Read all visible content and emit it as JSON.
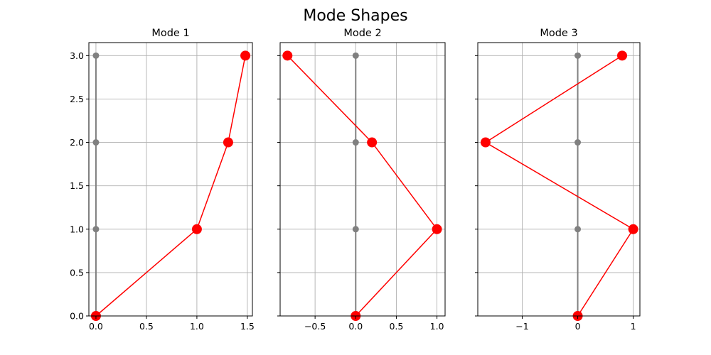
{
  "figure": {
    "title": "Mode Shapes",
    "colors": {
      "mode": "#ff0000",
      "undeformed": "#808080",
      "grid": "#b0b0b0"
    }
  },
  "chart_data": [
    {
      "type": "line",
      "title": "Mode 1",
      "xlim": [
        -0.07,
        1.55
      ],
      "ylim": [
        0,
        3.15
      ],
      "xticks": [
        0.0,
        0.5,
        1.0,
        1.5
      ],
      "xtick_labels": [
        "0.0",
        "0.5",
        "1.0",
        "1.5"
      ],
      "yticks": [
        0.0,
        0.5,
        1.0,
        1.5,
        2.0,
        2.5,
        3.0
      ],
      "ytick_labels": [
        "0.0",
        "0.5",
        "1.0",
        "1.5",
        "2.0",
        "2.5",
        "3.0"
      ],
      "grid": true,
      "series": [
        {
          "x": [
            0,
            0,
            0,
            0
          ],
          "y": [
            0,
            1,
            2,
            3
          ]
        },
        {
          "x": [
            0,
            1.0,
            1.31,
            1.48
          ],
          "y": [
            0,
            1,
            2,
            3
          ]
        }
      ]
    },
    {
      "type": "line",
      "title": "Mode 2",
      "xlim": [
        -0.93,
        1.1
      ],
      "ylim": [
        0,
        3.15
      ],
      "xticks": [
        -0.5,
        0.0,
        0.5,
        1.0
      ],
      "xtick_labels": [
        "−0.5",
        "0.0",
        "0.5",
        "1.0"
      ],
      "yticks": [
        0.0,
        0.5,
        1.0,
        1.5,
        2.0,
        2.5,
        3.0
      ],
      "ytick_labels": [],
      "grid": true,
      "series": [
        {
          "x": [
            0,
            0,
            0,
            0
          ],
          "y": [
            0,
            1,
            2,
            3
          ]
        },
        {
          "x": [
            0,
            1.0,
            0.2,
            -0.84
          ],
          "y": [
            0,
            1,
            2,
            3
          ]
        }
      ]
    },
    {
      "type": "line",
      "title": "Mode 3",
      "xlim": [
        -1.8,
        1.12
      ],
      "ylim": [
        0,
        3.15
      ],
      "xticks": [
        -1,
        0,
        1
      ],
      "xtick_labels": [
        "−1",
        "0",
        "1"
      ],
      "yticks": [
        0.0,
        0.5,
        1.0,
        1.5,
        2.0,
        2.5,
        3.0
      ],
      "ytick_labels": [],
      "grid": true,
      "series": [
        {
          "x": [
            0,
            0,
            0,
            0
          ],
          "y": [
            0,
            1,
            2,
            3
          ]
        },
        {
          "x": [
            0,
            1.0,
            -1.66,
            0.8
          ],
          "y": [
            0,
            1,
            2,
            3
          ]
        }
      ]
    }
  ]
}
